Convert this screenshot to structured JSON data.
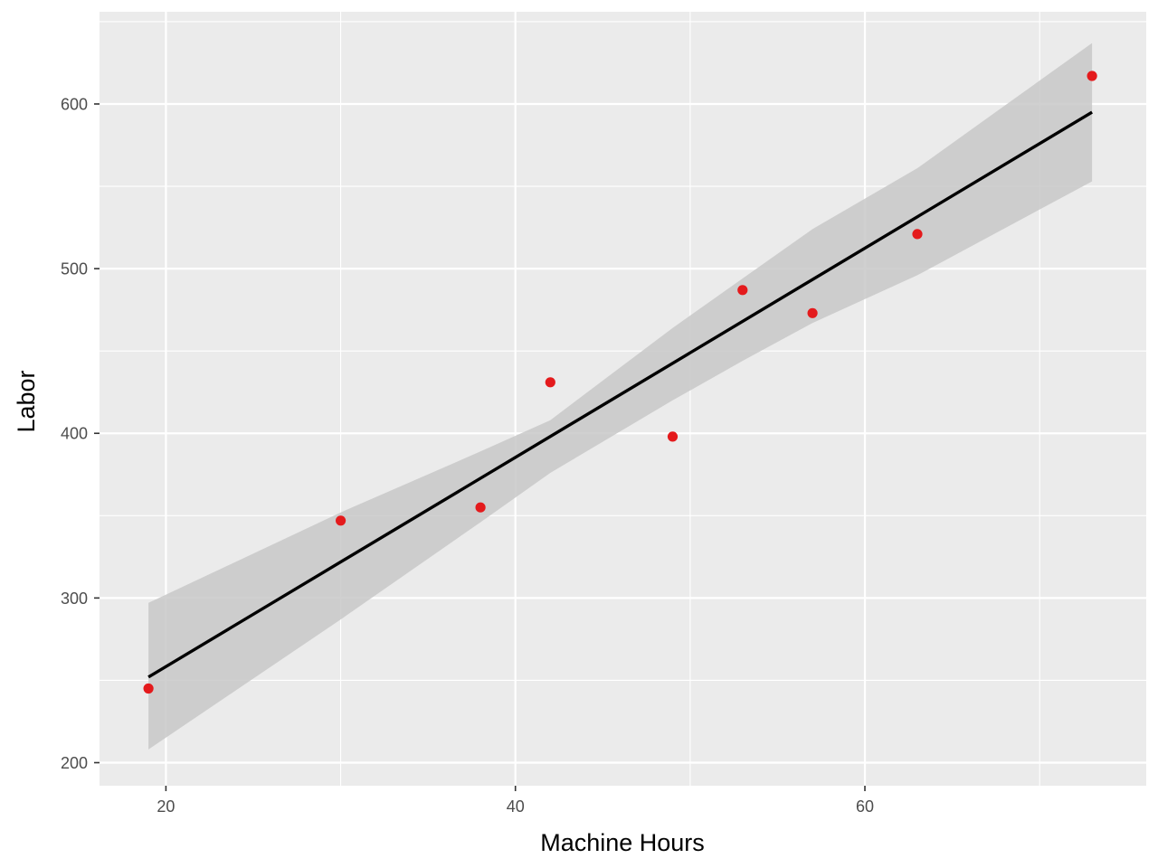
{
  "chart_data": {
    "type": "scatter",
    "title": "",
    "xlabel": "Machine Hours",
    "ylabel": "Labor",
    "xlim": [
      16.2,
      76.1
    ],
    "ylim": [
      186,
      656
    ],
    "x_ticks": [
      20,
      40,
      60
    ],
    "x_tick_labels": [
      "20",
      "40",
      "60"
    ],
    "y_ticks": [
      200,
      300,
      400,
      500,
      600
    ],
    "y_tick_labels": [
      "200",
      "300",
      "400",
      "500",
      "600"
    ],
    "grid": true,
    "legend": "none",
    "points": [
      {
        "x": 19,
        "y": 245
      },
      {
        "x": 30,
        "y": 347
      },
      {
        "x": 38,
        "y": 355
      },
      {
        "x": 42,
        "y": 431
      },
      {
        "x": 49,
        "y": 398
      },
      {
        "x": 53,
        "y": 487
      },
      {
        "x": 57,
        "y": 473
      },
      {
        "x": 63,
        "y": 521
      },
      {
        "x": 73,
        "y": 617
      }
    ],
    "fit_line": {
      "x": [
        19,
        73
      ],
      "y": [
        252,
        595
      ]
    },
    "confidence_band": {
      "x": [
        19,
        30,
        38,
        42,
        49,
        53,
        57,
        63,
        73
      ],
      "lower": [
        208,
        287,
        346,
        376,
        420,
        444,
        467,
        496,
        553
      ],
      "upper": [
        297,
        352,
        389,
        408,
        464,
        494,
        524,
        561,
        637
      ]
    },
    "colors": {
      "point": "#e41a1c",
      "line": "#000000",
      "band": "#c8c8c8",
      "panel": "#ebebeb",
      "grid": "#ffffff"
    }
  }
}
